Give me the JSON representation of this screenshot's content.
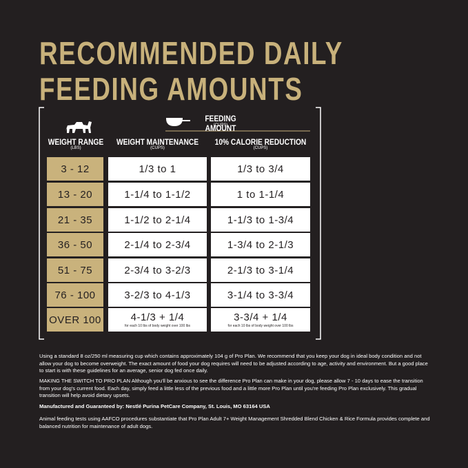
{
  "header": {
    "title_lines": [
      "RECOMMENDED DAILY",
      "FEEDING AMOUNTS"
    ]
  },
  "table": {
    "feeding_amount": "FEEDING AMOUNT",
    "feeding_amount_unit": "(CUPS)",
    "columns": [
      {
        "label": "WEIGHT RANGE",
        "unit": "(LBS)"
      },
      {
        "label": "WEIGHT MAINTENANCE",
        "unit": "(CUPS)"
      },
      {
        "label": "10% CALORIE REDUCTION",
        "unit": "(CUPS)"
      }
    ],
    "rows": [
      [
        "3 - 12",
        "1/3 to 1",
        "1/3 to 3/4"
      ],
      [
        "13 - 20",
        "1-1/4 to 1-1/2",
        "1 to 1-1/4"
      ],
      [
        "21 - 35",
        "1-1/2 to 2-1/4",
        "1-1/3 to 1-3/4"
      ],
      [
        "36 - 50",
        "2-1/4 to 2-3/4",
        "1-3/4 to 2-1/3"
      ],
      [
        "51 - 75",
        "2-3/4 to 3-2/3",
        "2-1/3 to 3-1/4"
      ],
      [
        "76 - 100",
        "3-2/3 to 4-1/3",
        "3-1/4 to 3-3/4"
      ],
      [
        "OVER 100",
        "4-1/3 + 1/4",
        "3-3/4 + 1/4"
      ]
    ],
    "row_notes": [
      "for each 10 lbs of body weight over 100 lbs",
      "for each 10 lbs of body weight over 100 lbs"
    ]
  },
  "footnotes": [
    "Using a standard 8 oz/250 ml measuring cup which contains approximately 104 g of Pro Plan. We recommend that you keep your dog in ideal body condition and not allow your dog to become overweight. The exact amount of food your dog requires will need to be adjusted according to age, activity and environment. But a good place to start is with these guidelines for an average, senior dog fed once daily.",
    "MAKING THE SWITCH TO PRO PLAN Although you'll be anxious to see the difference Pro Plan can make in your dog, please allow 7 - 10 days to ease the transition from your dog's current food. Each day, simply feed a little less of the previous food and a little more Pro Plan until you're feeding Pro Plan exclusively. This gradual transition will help avoid dietary upsets.",
    "Manufactured and Guaranteed by: Nestlé Purina PetCare Company, St. Louis, MO 63164 USA",
    "Animal feeding tests using AAFCO procedures substantiate that Pro Plan Adult 7+ Weight Management Shredded Blend Chicken & Rice Formula provides complete and balanced nutrition for maintenance of adult dogs."
  ]
}
